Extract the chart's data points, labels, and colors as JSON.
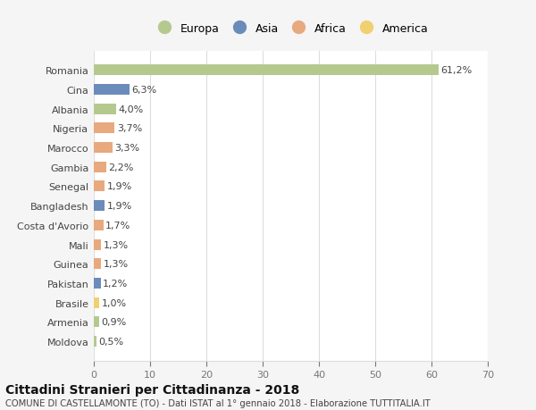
{
  "countries": [
    "Romania",
    "Cina",
    "Albania",
    "Nigeria",
    "Marocco",
    "Gambia",
    "Senegal",
    "Bangladesh",
    "Costa d'Avorio",
    "Mali",
    "Guinea",
    "Pakistan",
    "Brasile",
    "Armenia",
    "Moldova"
  ],
  "values": [
    61.2,
    6.3,
    4.0,
    3.7,
    3.3,
    2.2,
    1.9,
    1.9,
    1.7,
    1.3,
    1.3,
    1.2,
    1.0,
    0.9,
    0.5
  ],
  "labels": [
    "61,2%",
    "6,3%",
    "4,0%",
    "3,7%",
    "3,3%",
    "2,2%",
    "1,9%",
    "1,9%",
    "1,7%",
    "1,3%",
    "1,3%",
    "1,2%",
    "1,0%",
    "0,9%",
    "0,5%"
  ],
  "categories": [
    "Europa",
    "Asia",
    "Europa",
    "Africa",
    "Africa",
    "Africa",
    "Africa",
    "Asia",
    "Africa",
    "Africa",
    "Africa",
    "Asia",
    "America",
    "Europa",
    "Europa"
  ],
  "colors": {
    "Europa": "#b5c98e",
    "Asia": "#6b8cba",
    "Africa": "#e8a97e",
    "America": "#f0d070"
  },
  "legend_order": [
    "Europa",
    "Asia",
    "Africa",
    "America"
  ],
  "title": "Cittadini Stranieri per Cittadinanza - 2018",
  "subtitle": "COMUNE DI CASTELLAMONTE (TO) - Dati ISTAT al 1° gennaio 2018 - Elaborazione TUTTITALIA.IT",
  "xlim": [
    0,
    70
  ],
  "xticks": [
    0,
    10,
    20,
    30,
    40,
    50,
    60,
    70
  ],
  "bg_color": "#f5f5f5",
  "plot_bg_color": "#ffffff",
  "grid_color": "#dddddd"
}
